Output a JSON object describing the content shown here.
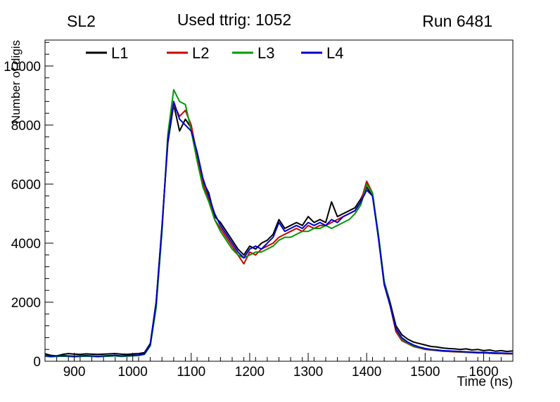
{
  "header": {
    "left": "SL2",
    "center": "Used ttrig: 1052",
    "right": "Run 6481"
  },
  "chart_data": {
    "type": "line",
    "title": "Used ttrig: 1052",
    "xlabel": "Time (ns)",
    "ylabel": "Number of digis",
    "xlim": [
      850,
      1650
    ],
    "ylim": [
      0,
      10880
    ],
    "x_ticks": [
      900,
      1000,
      1100,
      1200,
      1300,
      1400,
      1500,
      1600
    ],
    "x_minor_step": 20,
    "y_ticks": [
      0,
      2000,
      4000,
      6000,
      8000,
      10000
    ],
    "y_minor_step": 400,
    "grid": false,
    "legend_position": "top-inside-horizontal",
    "x": [
      850,
      860,
      870,
      880,
      890,
      900,
      910,
      920,
      930,
      940,
      950,
      960,
      970,
      980,
      990,
      1000,
      1010,
      1020,
      1030,
      1040,
      1050,
      1060,
      1070,
      1080,
      1090,
      1100,
      1110,
      1120,
      1130,
      1140,
      1150,
      1160,
      1170,
      1180,
      1190,
      1200,
      1210,
      1220,
      1230,
      1240,
      1250,
      1260,
      1270,
      1280,
      1290,
      1300,
      1310,
      1320,
      1330,
      1340,
      1350,
      1360,
      1370,
      1380,
      1390,
      1400,
      1410,
      1420,
      1430,
      1440,
      1450,
      1460,
      1470,
      1480,
      1490,
      1500,
      1510,
      1520,
      1530,
      1540,
      1550,
      1560,
      1570,
      1580,
      1590,
      1600,
      1610,
      1620,
      1630,
      1640,
      1650
    ],
    "series": [
      {
        "name": "L1",
        "color": "#000000",
        "values": [
          250,
          200,
          180,
          230,
          260,
          240,
          230,
          250,
          240,
          230,
          240,
          250,
          260,
          240,
          230,
          250,
          260,
          290,
          600,
          2000,
          4600,
          7400,
          8700,
          7800,
          8200,
          7900,
          7000,
          6100,
          5700,
          4900,
          4700,
          4400,
          4100,
          3800,
          3600,
          3900,
          3800,
          4000,
          4100,
          4300,
          4800,
          4500,
          4600,
          4700,
          4600,
          4900,
          4700,
          4800,
          4700,
          5400,
          4900,
          5000,
          5100,
          5200,
          5500,
          5900,
          5600,
          4300,
          2700,
          2000,
          1200,
          900,
          750,
          650,
          600,
          550,
          500,
          480,
          450,
          430,
          420,
          400,
          420,
          380,
          400,
          360,
          380,
          340,
          360,
          330,
          350
        ]
      },
      {
        "name": "L2",
        "color": "#cc0000",
        "values": [
          180,
          160,
          170,
          180,
          170,
          160,
          170,
          180,
          170,
          160,
          170,
          180,
          190,
          170,
          180,
          190,
          200,
          240,
          550,
          1900,
          4500,
          7600,
          8700,
          8300,
          8500,
          8000,
          7000,
          6000,
          5500,
          4800,
          4500,
          4200,
          3900,
          3600,
          3300,
          3700,
          3600,
          3800,
          3900,
          4000,
          4200,
          4300,
          4400,
          4500,
          4400,
          4600,
          4500,
          4600,
          4600,
          4700,
          4800,
          4900,
          5000,
          5100,
          5400,
          6100,
          5700,
          4200,
          2600,
          1900,
          1000,
          700,
          600,
          500,
          450,
          400,
          380,
          360,
          340,
          330,
          320,
          310,
          300,
          290,
          280,
          280,
          270,
          260,
          260,
          250,
          250
        ]
      },
      {
        "name": "L3",
        "color": "#009900",
        "values": [
          170,
          150,
          160,
          170,
          160,
          150,
          160,
          170,
          160,
          150,
          160,
          170,
          180,
          160,
          170,
          180,
          190,
          230,
          520,
          1800,
          4400,
          7700,
          9200,
          8800,
          8700,
          7800,
          6800,
          5900,
          5400,
          4800,
          4400,
          4100,
          3800,
          3600,
          3500,
          3600,
          3700,
          3700,
          3800,
          3900,
          4100,
          4200,
          4200,
          4300,
          4400,
          4400,
          4500,
          4500,
          4600,
          4500,
          4600,
          4700,
          4800,
          5000,
          5300,
          6000,
          5700,
          4300,
          2700,
          1900,
          1100,
          750,
          620,
          520,
          460,
          420,
          390,
          370,
          350,
          340,
          330,
          320,
          310,
          300,
          290,
          290,
          280,
          270,
          270,
          260,
          260
        ]
      },
      {
        "name": "L4",
        "color": "#0000cc",
        "values": [
          190,
          170,
          180,
          190,
          180,
          170,
          180,
          190,
          180,
          170,
          180,
          190,
          200,
          180,
          190,
          200,
          210,
          250,
          560,
          1950,
          4550,
          7500,
          8800,
          8200,
          8000,
          7800,
          7100,
          6200,
          5600,
          5000,
          4600,
          4300,
          4000,
          3700,
          3500,
          3800,
          3900,
          3800,
          4000,
          4200,
          4700,
          4400,
          4500,
          4600,
          4500,
          4700,
          4600,
          4700,
          4600,
          4800,
          4700,
          4900,
          5000,
          5100,
          5400,
          5800,
          5600,
          4200,
          2600,
          1900,
          1100,
          800,
          650,
          550,
          480,
          430,
          400,
          380,
          360,
          350,
          340,
          330,
          320,
          310,
          300,
          300,
          290,
          280,
          280,
          270,
          270
        ]
      }
    ]
  }
}
